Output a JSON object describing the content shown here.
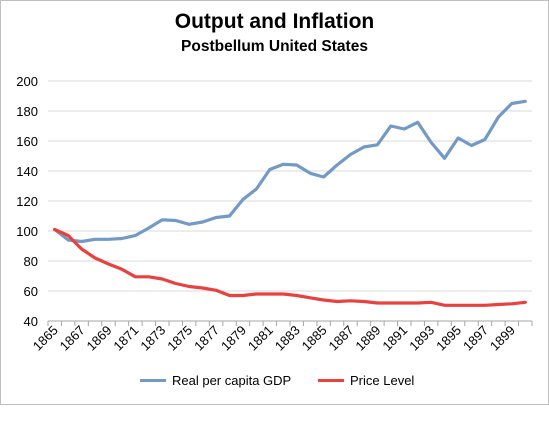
{
  "chart_data": {
    "type": "line",
    "title": "Output and Inflation",
    "subtitle": "Postbellum United States",
    "xlabel": "",
    "ylabel": "",
    "ylim": [
      40,
      200
    ],
    "yticks": [
      40,
      60,
      80,
      100,
      120,
      140,
      160,
      180,
      200
    ],
    "xticks": [
      1865,
      1867,
      1869,
      1871,
      1873,
      1875,
      1877,
      1879,
      1881,
      1883,
      1885,
      1887,
      1889,
      1891,
      1893,
      1895,
      1897,
      1899
    ],
    "grid": "horizontal",
    "legend": "bottom",
    "x": [
      1865,
      1866,
      1867,
      1868,
      1869,
      1870,
      1871,
      1872,
      1873,
      1874,
      1875,
      1876,
      1877,
      1878,
      1879,
      1880,
      1881,
      1882,
      1883,
      1884,
      1885,
      1886,
      1887,
      1888,
      1889,
      1890,
      1891,
      1892,
      1893,
      1894,
      1895,
      1896,
      1897,
      1898,
      1899,
      1900
    ],
    "series": [
      {
        "name": "Real per capita GDP",
        "color": "#7399c6",
        "values": [
          101,
          94,
          93,
          94.5,
          94.5,
          95,
          97,
          102,
          107.5,
          107,
          104.5,
          106,
          109,
          110,
          121,
          128,
          141,
          144.5,
          144,
          138.5,
          136,
          144,
          151,
          156,
          157.5,
          170,
          168,
          172.5,
          159,
          148.5,
          162,
          157,
          161,
          176,
          185,
          186.5
        ]
      },
      {
        "name": "Price Level",
        "color": "#e8413f",
        "values": [
          101,
          97,
          88,
          82,
          78,
          74.5,
          69.5,
          69.5,
          68,
          65,
          63,
          62,
          60.5,
          57,
          57,
          58,
          58,
          58,
          57,
          55.5,
          54,
          53,
          53.5,
          53,
          52,
          52,
          52,
          52,
          52.5,
          50.5,
          50.5,
          50.5,
          50.5,
          51,
          51.5,
          52.5
        ]
      }
    ]
  }
}
